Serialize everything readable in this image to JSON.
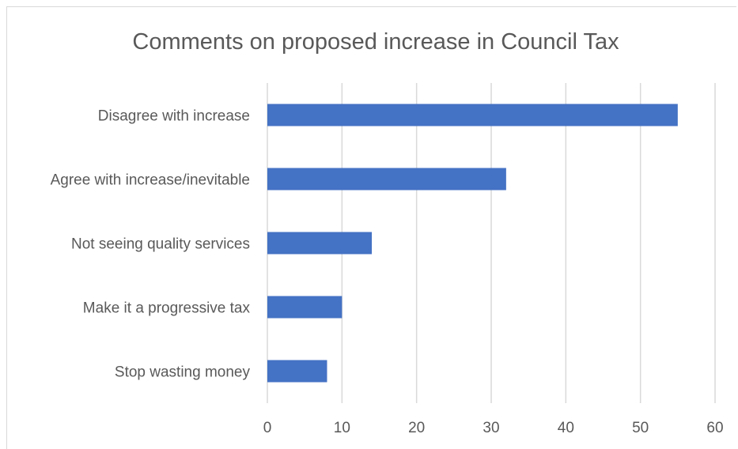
{
  "chart_data": {
    "type": "bar",
    "orientation": "horizontal",
    "title": "Comments on proposed increase in Council Tax",
    "xlabel": "",
    "ylabel": "",
    "categories": [
      "Disagree with increase",
      "Agree with increase/inevitable",
      "Not seeing quality services",
      "Make it a progressive tax",
      "Stop wasting money"
    ],
    "values": [
      55,
      32,
      14,
      10,
      8
    ],
    "xlim": [
      0,
      60
    ],
    "xticks": [
      "0",
      "10",
      "20",
      "30",
      "40",
      "50",
      "60"
    ],
    "grid": true,
    "legend": "none",
    "bar_color": "#4472C4"
  }
}
